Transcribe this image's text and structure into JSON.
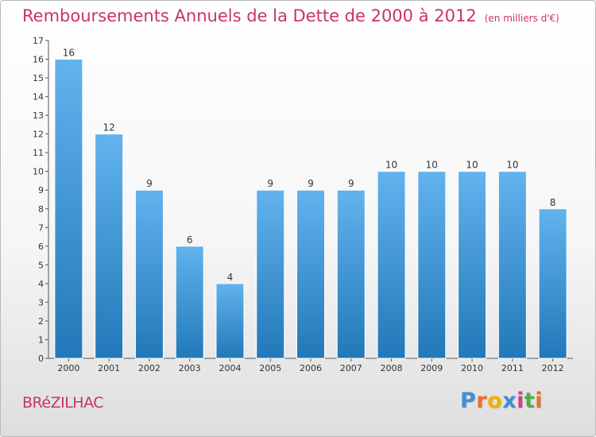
{
  "chart_data": {
    "type": "bar",
    "title": "Remboursements Annuels de la Dette de 2000 à 2012",
    "units": "(en milliers d'€)",
    "categories": [
      "2000",
      "2001",
      "2002",
      "2003",
      "2004",
      "2005",
      "2006",
      "2007",
      "2008",
      "2009",
      "2010",
      "2011",
      "2012"
    ],
    "values": [
      16,
      12,
      9,
      6,
      4,
      9,
      9,
      9,
      10,
      10,
      10,
      10,
      8
    ],
    "ylim": [
      0,
      17
    ],
    "yticks": [
      0,
      1,
      2,
      3,
      4,
      5,
      6,
      7,
      8,
      9,
      10,
      11,
      12,
      13,
      14,
      15,
      16,
      17
    ],
    "grid": false,
    "colors": {
      "bar_light": "#62b3ee",
      "bar_dark": "#2278b8",
      "title": "#c8326e"
    }
  },
  "commune": "BRéZILHAC",
  "logo": {
    "text": "Proxiti",
    "colors": [
      "#3c8fd6",
      "#e8702a",
      "#f2b000",
      "#3c8fd6",
      "#d93a8a",
      "#4fae45",
      "#e8702a"
    ]
  }
}
